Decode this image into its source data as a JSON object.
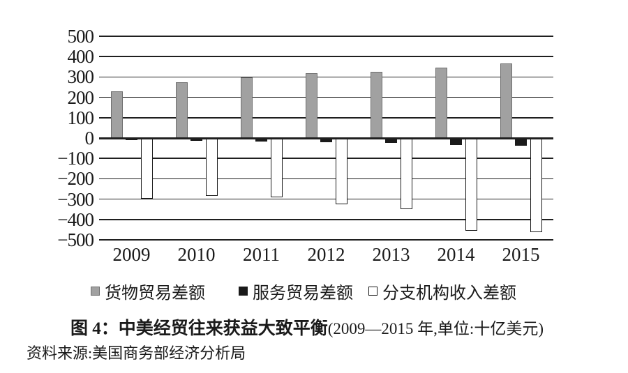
{
  "page": {
    "background": "#ffffff"
  },
  "chart_data": {
    "type": "bar",
    "title": "图 4：中美经贸往来获益大致平衡",
    "title_note": "(2009—2015 年,单位:十亿美元)",
    "unit": "十亿美元",
    "categories": [
      "2009",
      "2010",
      "2011",
      "2012",
      "2013",
      "2014",
      "2015"
    ],
    "series": [
      {
        "key": "goods-trade-balance",
        "name": "货物贸易差额",
        "fill": "#a1a1a1",
        "border": "#6e6e6e",
        "values": [
          228,
          275,
          297,
          318,
          324,
          345,
          367
        ]
      },
      {
        "key": "services-trade-balance",
        "name": "服务贸易差额",
        "fill": "#1a1a1a",
        "border": "#1a1a1a",
        "values": [
          -10,
          -15,
          -18,
          -20,
          -24,
          -34,
          -37
        ]
      },
      {
        "key": "affiliate-income-balance",
        "name": "分支机构收入差额",
        "fill": "#ffffff",
        "border": "#1a1a1a",
        "values": [
          -298,
          -284,
          -291,
          -325,
          -351,
          -454,
          -464
        ]
      }
    ],
    "ylim": [
      -500,
      500
    ],
    "yticks": [
      500,
      400,
      300,
      200,
      100,
      0,
      -100,
      -200,
      -300,
      -400,
      -500
    ],
    "grid": "horizontal",
    "legend_position": "bottom",
    "axis_color": "#1f1f1f"
  },
  "caption": {
    "bold": "图 4：中美经贸往来获益大致平衡",
    "paren": "(2009—2015 年,单位:十亿美元)"
  },
  "source": {
    "text": "资料来源:美国商务部经济分析局"
  }
}
